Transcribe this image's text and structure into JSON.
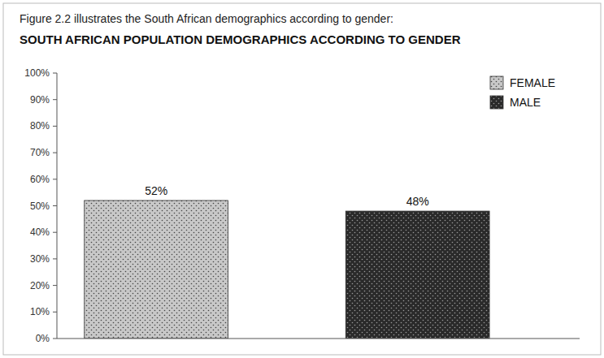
{
  "chart_data": {
    "type": "bar",
    "subtitle": "Figure 2.2 illustrates the South African demographics according to gender:",
    "title": "SOUTH AFRICAN POPULATION DEMOGRAPHICS ACCORDING TO GENDER",
    "categories": [
      "FEMALE",
      "MALE"
    ],
    "values": [
      52,
      48
    ],
    "value_labels": [
      "52%",
      "48%"
    ],
    "colors": [
      "#c8c8c8",
      "#2a2a2a"
    ],
    "ylim": [
      0,
      100
    ],
    "yticks": [
      {
        "value": 0,
        "label": "0%"
      },
      {
        "value": 10,
        "label": "10%"
      },
      {
        "value": 20,
        "label": "20%"
      },
      {
        "value": 30,
        "label": "30%"
      },
      {
        "value": 40,
        "label": "40%"
      },
      {
        "value": 50,
        "label": "50%"
      },
      {
        "value": 60,
        "label": "60%"
      },
      {
        "value": 70,
        "label": "70%"
      },
      {
        "value": 80,
        "label": "80%"
      },
      {
        "value": 90,
        "label": "90%"
      },
      {
        "value": 100,
        "label": "100%"
      }
    ],
    "data_labels": true,
    "legend": "upper right",
    "grid": false,
    "tick_labels": "y"
  }
}
